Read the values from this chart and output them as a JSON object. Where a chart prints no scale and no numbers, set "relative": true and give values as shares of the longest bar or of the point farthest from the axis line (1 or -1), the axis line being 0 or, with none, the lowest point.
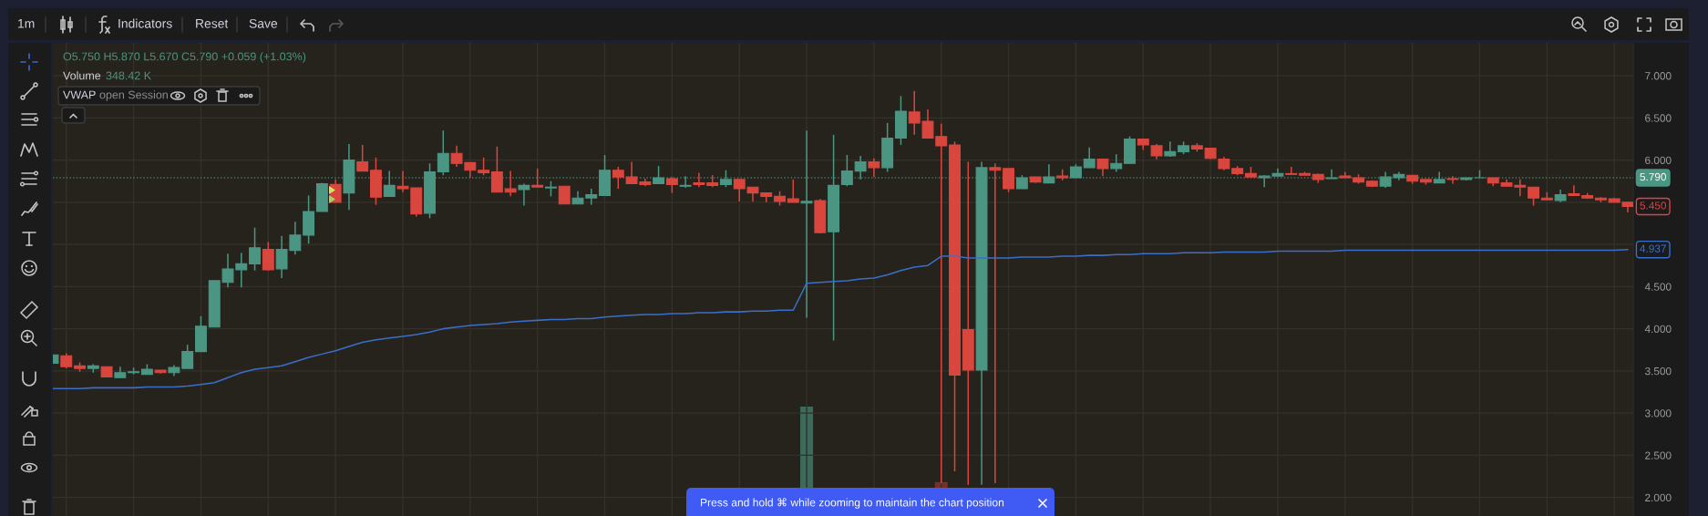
{
  "chart_data": [
    {
      "type": "candlestick",
      "categories": [
        null,
        null,
        null,
        null,
        null,
        null,
        null,
        null,
        null,
        null,
        null,
        null,
        null,
        null,
        null,
        null,
        null,
        null,
        null,
        null,
        null,
        null,
        null,
        null,
        null,
        null,
        null,
        null,
        null,
        null,
        null,
        null,
        null,
        null,
        null,
        null,
        null,
        null,
        null,
        null,
        null,
        null,
        null,
        null,
        null,
        null,
        null,
        null,
        null,
        null,
        null,
        null,
        null,
        null,
        null,
        null,
        null,
        null,
        null,
        null,
        null,
        null,
        null,
        null,
        null,
        null,
        null,
        null,
        null,
        null,
        null,
        null,
        null,
        null,
        null,
        null,
        null,
        null,
        null,
        null,
        null,
        null,
        null,
        null,
        null,
        null,
        null,
        null,
        null,
        null,
        null,
        null,
        null,
        null,
        null,
        null,
        null,
        null,
        null,
        null,
        null,
        null,
        null,
        null,
        null,
        null,
        null,
        null,
        null,
        null,
        null,
        null,
        null,
        null,
        null,
        null,
        null,
        null
      ],
      "ohlc": [
        [
          3.59,
          3.69,
          3.59,
          3.69
        ],
        [
          3.68,
          3.71,
          3.53,
          3.55
        ],
        [
          3.56,
          3.6,
          3.49,
          3.53
        ],
        [
          3.53,
          3.58,
          3.48,
          3.56
        ],
        [
          3.55,
          3.55,
          3.43,
          3.43
        ],
        [
          3.42,
          3.55,
          3.42,
          3.48
        ],
        [
          3.48,
          3.54,
          3.46,
          3.49
        ],
        [
          3.46,
          3.58,
          3.46,
          3.52
        ],
        [
          3.51,
          3.51,
          3.47,
          3.48
        ],
        [
          3.48,
          3.57,
          3.44,
          3.54
        ],
        [
          3.53,
          3.81,
          3.53,
          3.73
        ],
        [
          3.73,
          4.15,
          3.73,
          4.03
        ],
        [
          4.02,
          4.57,
          4.02,
          4.57
        ],
        [
          4.55,
          4.89,
          4.49,
          4.71
        ],
        [
          4.7,
          4.9,
          4.49,
          4.77
        ],
        [
          4.77,
          5.2,
          4.69,
          4.96
        ],
        [
          4.94,
          5.03,
          4.69,
          4.7
        ],
        [
          4.71,
          5.1,
          4.6,
          4.94
        ],
        [
          4.93,
          5.27,
          4.88,
          5.11
        ],
        [
          5.11,
          5.58,
          5.01,
          5.39
        ],
        [
          5.39,
          5.73,
          5.39,
          5.72
        ],
        [
          5.71,
          5.77,
          5.5,
          5.5
        ],
        [
          5.61,
          6.19,
          5.41,
          6.0
        ],
        [
          5.98,
          6.18,
          5.87,
          5.87
        ],
        [
          5.88,
          6.03,
          5.47,
          5.56
        ],
        [
          5.57,
          5.87,
          5.57,
          5.7
        ],
        [
          5.69,
          5.87,
          5.62,
          5.66
        ],
        [
          5.67,
          5.67,
          5.33,
          5.36
        ],
        [
          5.37,
          5.96,
          5.31,
          5.86
        ],
        [
          5.86,
          6.35,
          5.82,
          6.08
        ],
        [
          6.08,
          6.17,
          5.92,
          5.96
        ],
        [
          5.97,
          5.97,
          5.79,
          5.88
        ],
        [
          5.88,
          6.03,
          5.82,
          5.85
        ],
        [
          5.86,
          6.16,
          5.62,
          5.62
        ],
        [
          5.66,
          5.87,
          5.57,
          5.62
        ],
        [
          5.65,
          5.72,
          5.46,
          5.7
        ],
        [
          5.7,
          5.9,
          5.68,
          5.68
        ],
        [
          5.67,
          5.75,
          5.57,
          5.68
        ],
        [
          5.69,
          5.69,
          5.48,
          5.48
        ],
        [
          5.48,
          5.63,
          5.48,
          5.55
        ],
        [
          5.55,
          5.66,
          5.47,
          5.59
        ],
        [
          5.58,
          6.06,
          5.58,
          5.88
        ],
        [
          5.88,
          5.92,
          5.66,
          5.8
        ],
        [
          5.8,
          5.98,
          5.72,
          5.72
        ],
        [
          5.74,
          5.78,
          5.69,
          5.71
        ],
        [
          5.72,
          5.93,
          5.72,
          5.79
        ],
        [
          5.78,
          5.8,
          5.61,
          5.71
        ],
        [
          5.69,
          5.81,
          5.67,
          5.7
        ],
        [
          5.73,
          5.85,
          5.68,
          5.71
        ],
        [
          5.73,
          5.82,
          5.68,
          5.7
        ],
        [
          5.71,
          5.88,
          5.68,
          5.77
        ],
        [
          5.77,
          5.77,
          5.51,
          5.66
        ],
        [
          5.68,
          5.68,
          5.51,
          5.61
        ],
        [
          5.61,
          5.61,
          5.5,
          5.57
        ],
        [
          5.57,
          5.63,
          5.46,
          5.51
        ],
        [
          5.54,
          5.77,
          5.5,
          5.5
        ],
        [
          5.49,
          6.35,
          4.13,
          5.51
        ],
        [
          5.52,
          5.54,
          5.13,
          5.14
        ],
        [
          5.15,
          6.3,
          3.86,
          5.7
        ],
        [
          5.71,
          6.06,
          5.69,
          5.87
        ],
        [
          5.87,
          6.05,
          5.77,
          5.98
        ],
        [
          5.98,
          6.02,
          5.8,
          5.91
        ],
        [
          5.91,
          6.44,
          5.86,
          6.26
        ],
        [
          6.26,
          6.76,
          6.18,
          6.58
        ],
        [
          6.57,
          6.82,
          6.3,
          6.44
        ],
        [
          6.46,
          6.6,
          6.26,
          6.26
        ],
        [
          6.28,
          6.43,
          2.17,
          6.17
        ],
        [
          6.18,
          6.22,
          2.31,
          3.45
        ],
        [
          3.99,
          5.98,
          2.15,
          3.51
        ],
        [
          3.51,
          5.98,
          2.15,
          5.91
        ],
        [
          5.91,
          5.96,
          2.17,
          5.88
        ],
        [
          5.9,
          5.9,
          5.62,
          5.66
        ],
        [
          5.66,
          5.82,
          5.66,
          5.79
        ],
        [
          5.8,
          5.8,
          5.73,
          5.74
        ],
        [
          5.73,
          5.95,
          5.73,
          5.8
        ],
        [
          5.81,
          5.89,
          5.76,
          5.79
        ],
        [
          5.79,
          5.95,
          5.79,
          5.92
        ],
        [
          5.91,
          6.15,
          5.91,
          6.01
        ],
        [
          6.01,
          6.02,
          5.81,
          5.9
        ],
        [
          5.9,
          6.07,
          5.86,
          5.96
        ],
        [
          5.96,
          6.28,
          5.96,
          6.25
        ],
        [
          6.25,
          6.25,
          6.12,
          6.18
        ],
        [
          6.17,
          6.19,
          6.01,
          6.05
        ],
        [
          6.05,
          6.22,
          6.04,
          6.1
        ],
        [
          6.1,
          6.22,
          6.07,
          6.17
        ],
        [
          6.17,
          6.2,
          6.1,
          6.13
        ],
        [
          6.14,
          6.14,
          6.01,
          6.02
        ],
        [
          6.01,
          6.04,
          5.88,
          5.9
        ],
        [
          5.9,
          5.93,
          5.82,
          5.84
        ],
        [
          5.84,
          5.92,
          5.8,
          5.8
        ],
        [
          5.79,
          5.82,
          5.68,
          5.81
        ],
        [
          5.81,
          5.9,
          5.81,
          5.84
        ],
        [
          5.84,
          5.92,
          5.83,
          5.83
        ],
        [
          5.84,
          5.86,
          5.82,
          5.82
        ],
        [
          5.83,
          5.84,
          5.73,
          5.77
        ],
        [
          5.78,
          5.89,
          5.78,
          5.79
        ],
        [
          5.81,
          5.86,
          5.79,
          5.79
        ],
        [
          5.79,
          5.83,
          5.72,
          5.74
        ],
        [
          5.75,
          5.76,
          5.68,
          5.69
        ],
        [
          5.69,
          5.86,
          5.67,
          5.8
        ],
        [
          5.79,
          5.86,
          5.76,
          5.83
        ],
        [
          5.82,
          5.82,
          5.72,
          5.75
        ],
        [
          5.77,
          5.77,
          5.71,
          5.74
        ],
        [
          5.73,
          5.86,
          5.73,
          5.77
        ],
        [
          5.78,
          5.81,
          5.72,
          5.77
        ],
        [
          5.77,
          5.79,
          5.76,
          5.79
        ],
        [
          5.79,
          5.88,
          5.79,
          5.79
        ],
        [
          5.79,
          5.79,
          5.69,
          5.73
        ],
        [
          5.73,
          5.77,
          5.69,
          5.69
        ],
        [
          5.7,
          5.77,
          5.57,
          5.68
        ],
        [
          5.68,
          5.68,
          5.46,
          5.55
        ],
        [
          5.55,
          5.62,
          5.53,
          5.53
        ],
        [
          5.52,
          5.65,
          5.5,
          5.59
        ],
        [
          5.6,
          5.7,
          5.58,
          5.58
        ],
        [
          5.58,
          5.61,
          5.54,
          5.55
        ],
        [
          5.55,
          5.56,
          5.5,
          5.53
        ],
        [
          5.54,
          5.55,
          5.5,
          5.5
        ],
        [
          5.5,
          5.5,
          5.38,
          5.45
        ]
      ],
      "colors": [
        "#4b9583",
        "#d9463e",
        "#d9463e",
        "#4b9583",
        "#d9463e",
        "#4b9583",
        "#4b9583",
        "#4b9583",
        "#d9463e",
        "#4b9583",
        "#4b9583",
        "#4b9583",
        "#4b9583",
        "#4b9583",
        "#4b9583",
        "#4b9583",
        "#d9463e",
        "#4b9583",
        "#4b9583",
        "#4b9583",
        "#4b9583",
        "#d9463e",
        "#4b9583",
        "#d9463e",
        "#d9463e",
        "#4b9583",
        "#d9463e",
        "#d9463e",
        "#4b9583",
        "#4b9583",
        "#d9463e",
        "#d9463e",
        "#d9463e",
        "#d9463e",
        "#d9463e",
        "#4b9583",
        "#d9463e",
        "#4b9583",
        "#d9463e",
        "#4b9583",
        "#4b9583",
        "#4b9583",
        "#d9463e",
        "#d9463e",
        "#d9463e",
        "#4b9583",
        "#d9463e",
        "#4b9583",
        "#d9463e",
        "#d9463e",
        "#4b9583",
        "#d9463e",
        "#d9463e",
        "#d9463e",
        "#d9463e",
        "#d9463e",
        "#4b9583",
        "#d9463e",
        "#4b9583",
        "#4b9583",
        "#4b9583",
        "#d9463e",
        "#4b9583",
        "#4b9583",
        "#d9463e",
        "#d9463e",
        "#d9463e",
        "#d9463e",
        "#d9463e",
        "#4b9583",
        "#d9463e",
        "#d9463e",
        "#4b9583",
        "#d9463e",
        "#4b9583",
        "#d9463e",
        "#4b9583",
        "#4b9583",
        "#d9463e",
        "#4b9583",
        "#4b9583",
        "#d9463e",
        "#d9463e",
        "#4b9583",
        "#4b9583",
        "#d9463e",
        "#d9463e",
        "#d9463e",
        "#d9463e",
        "#d9463e",
        "#4b9583",
        "#4b9583",
        "#d9463e",
        "#d9463e",
        "#d9463e",
        "#4b9583",
        "#d9463e",
        "#d9463e",
        "#d9463e",
        "#4b9583",
        "#4b9583",
        "#d9463e",
        "#d9463e",
        "#4b9583",
        "#d9463e",
        "#4b9583",
        "#4b9583",
        "#d9463e",
        "#d9463e",
        "#d9463e",
        "#d9463e",
        "#d9463e",
        "#4b9583",
        "#d9463e",
        "#d9463e",
        "#d9463e",
        "#d9463e",
        "#d9463e"
      ],
      "series": [
        {
          "type": "line",
          "color": "#3a6fc9",
          "values": [
            3.29,
            3.29,
            3.29,
            3.3,
            3.3,
            3.3,
            3.3,
            3.31,
            3.31,
            3.31,
            3.32,
            3.34,
            3.36,
            3.42,
            3.48,
            3.52,
            3.54,
            3.56,
            3.61,
            3.66,
            3.7,
            3.74,
            3.79,
            3.84,
            3.87,
            3.89,
            3.91,
            3.93,
            3.96,
            4.0,
            4.02,
            4.04,
            4.05,
            4.06,
            4.08,
            4.09,
            4.1,
            4.11,
            4.11,
            4.12,
            4.12,
            4.14,
            4.15,
            4.16,
            4.17,
            4.17,
            4.18,
            4.18,
            4.19,
            4.19,
            4.2,
            4.2,
            4.21,
            4.21,
            4.22,
            4.22,
            4.54,
            4.55,
            4.56,
            4.57,
            4.59,
            4.6,
            4.64,
            4.69,
            4.73,
            4.75,
            4.86,
            4.86,
            4.84,
            4.84,
            4.84,
            4.84,
            4.85,
            4.85,
            4.85,
            4.86,
            4.86,
            4.87,
            4.87,
            4.88,
            4.88,
            4.89,
            4.89,
            4.89,
            4.9,
            4.9,
            4.9,
            4.91,
            4.91,
            4.91,
            4.91,
            4.92,
            4.92,
            4.92,
            4.92,
            4.92,
            4.93,
            4.93,
            4.93,
            4.93,
            4.93,
            4.93,
            4.93,
            4.93,
            4.93,
            4.93,
            4.93,
            4.93,
            4.93,
            4.93,
            4.93,
            4.93,
            4.93,
            4.93,
            4.93,
            4.93,
            4.93,
            4.94
          ]
        }
      ],
      "ylim": [
        1.78,
        7.39
      ],
      "yticks": [
        {
          "value": 7,
          "label": "7.000"
        },
        {
          "value": 6.5,
          "label": "6.500"
        },
        {
          "value": 6,
          "label": "6.000"
        },
        {
          "value": 5.5,
          "label": null
        },
        {
          "value": 5,
          "label": null
        },
        {
          "value": 4.5,
          "label": "4.500"
        },
        {
          "value": 4,
          "label": "4.000"
        },
        {
          "value": 3.5,
          "label": "3.500"
        },
        {
          "value": 3,
          "label": "3.000"
        },
        {
          "value": 2.5,
          "label": "2.500"
        },
        {
          "value": 2,
          "label": "2.000"
        }
      ],
      "grid": true,
      "tick_labels": "y",
      "ref_lines": [
        {
          "axis": "y",
          "value": 5.79,
          "label": "5.790",
          "color": "#4b9583",
          "line_style": "dotted"
        }
      ],
      "annotations": [
        "1m",
        "Indicators",
        "Reset",
        "Save",
        "O5.750 H5.870 L5.670 C5.790 +0.059 (+1.03%)",
        "Volume",
        "348.42 K",
        "VWAP",
        "open Session",
        "Press and hold ⌘ while zooming to maintain the chart position",
        "4.937",
        "5.450"
      ]
    },
    {
      "type": "bar",
      "relative": true,
      "tick_labels": false,
      "categories": [
        null,
        null,
        null,
        null,
        null,
        null,
        null,
        null,
        null,
        null,
        null,
        null,
        null,
        null,
        null,
        null,
        null,
        null,
        null,
        null,
        null,
        null,
        null,
        null,
        null,
        null,
        null,
        null,
        null,
        null,
        null,
        null,
        null,
        null,
        null,
        null,
        null,
        null,
        null,
        null,
        null,
        null,
        null,
        null,
        null,
        null,
        null,
        null,
        null,
        null,
        null,
        null,
        null,
        null,
        null,
        null,
        null,
        null,
        null,
        null,
        null,
        null,
        null,
        null,
        null,
        null,
        null,
        null,
        null,
        null,
        null,
        null,
        null,
        null,
        null,
        null,
        null,
        null,
        null,
        null,
        null,
        null,
        null,
        null,
        null,
        null,
        null,
        null,
        null,
        null,
        null,
        null,
        null,
        null,
        null,
        null,
        null,
        null,
        null,
        null,
        null,
        null,
        null,
        null,
        null,
        null,
        null,
        null,
        null,
        null,
        null,
        null,
        null,
        null,
        null,
        null,
        null,
        null
      ],
      "values": [
        null,
        null,
        null,
        null,
        null,
        null,
        null,
        null,
        null,
        null,
        null,
        null,
        null,
        null,
        null,
        null,
        null,
        null,
        null,
        null,
        null,
        null,
        null,
        null,
        null,
        null,
        null,
        null,
        null,
        null,
        null,
        null,
        null,
        null,
        null,
        null,
        null,
        null,
        null,
        null,
        null,
        null,
        null,
        null,
        null,
        null,
        null,
        null,
        null,
        null,
        null,
        null,
        null,
        null,
        null,
        null,
        1,
        null,
        null,
        null,
        null,
        null,
        null,
        null,
        null,
        null,
        0.31,
        null,
        null,
        null,
        null,
        null,
        null,
        null,
        null,
        null,
        null,
        null,
        null,
        null,
        null,
        null,
        null,
        null,
        null,
        null,
        null,
        null,
        null,
        null,
        null,
        null,
        null,
        null,
        null,
        null,
        null,
        null,
        null,
        null,
        null,
        null,
        null,
        null,
        null,
        null,
        null,
        null,
        null,
        null,
        null,
        null,
        null,
        null,
        null,
        null,
        null,
        null
      ],
      "colors": [
        null,
        null,
        null,
        null,
        null,
        null,
        null,
        null,
        null,
        null,
        null,
        null,
        null,
        null,
        null,
        null,
        null,
        null,
        null,
        null,
        null,
        null,
        null,
        null,
        null,
        null,
        null,
        null,
        null,
        null,
        null,
        null,
        null,
        null,
        null,
        null,
        null,
        null,
        null,
        null,
        null,
        null,
        null,
        null,
        null,
        null,
        null,
        null,
        null,
        null,
        null,
        null,
        null,
        null,
        null,
        null,
        "#3d6b5b",
        null,
        null,
        null,
        null,
        null,
        null,
        null,
        null,
        null,
        "#7a2e29",
        null,
        null,
        null,
        null,
        null,
        null,
        null,
        null,
        null,
        null,
        null,
        null,
        null,
        null,
        null,
        null,
        null,
        null,
        null,
        null,
        null,
        null,
        null,
        null,
        null,
        null,
        null,
        null,
        null,
        null,
        null,
        null,
        null,
        null,
        null,
        null,
        null,
        null,
        null,
        null,
        null,
        null,
        null,
        null,
        null,
        null,
        null,
        null,
        null,
        null,
        null
      ]
    }
  ]
}
